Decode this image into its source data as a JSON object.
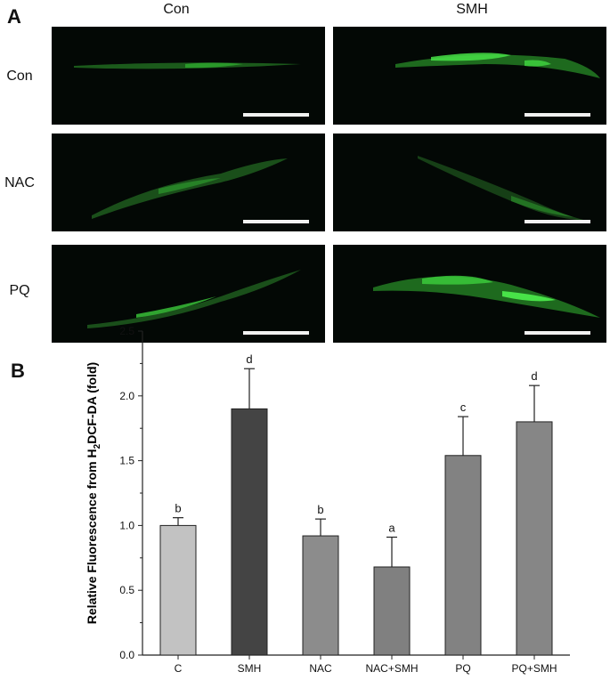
{
  "panel_a": {
    "letter": "A",
    "columns": [
      "Con",
      "SMH"
    ],
    "rows": [
      "Con",
      "NAC",
      "PQ"
    ]
  },
  "panel_b": {
    "letter": "B"
  },
  "chart_data": {
    "type": "bar",
    "categories": [
      "C",
      "SMH",
      "NAC",
      "NAC+SMH",
      "PQ",
      "PQ+SMH"
    ],
    "values": [
      1.0,
      1.9,
      0.92,
      0.68,
      1.54,
      1.8
    ],
    "errors": [
      0.06,
      0.31,
      0.13,
      0.23,
      0.3,
      0.28
    ],
    "significance_labels": [
      "b",
      "d",
      "b",
      "a",
      "c",
      "d"
    ],
    "bar_colors": [
      "#c2c2c2",
      "#444444",
      "#8c8c8c",
      "#808080",
      "#828282",
      "#868686"
    ],
    "ylabel": "Relative Fluorescence from H2DCF-DA (fold)",
    "ylabel_parts": {
      "pre": "Relative Fluorescence from H",
      "sub": "2",
      "post": "DCF-DA (fold)"
    },
    "ylim": [
      0.0,
      2.5
    ],
    "yticks": [
      "0.0",
      "0.5",
      "1.0",
      "1.5",
      "2.0",
      "2.5"
    ],
    "grid": false
  }
}
